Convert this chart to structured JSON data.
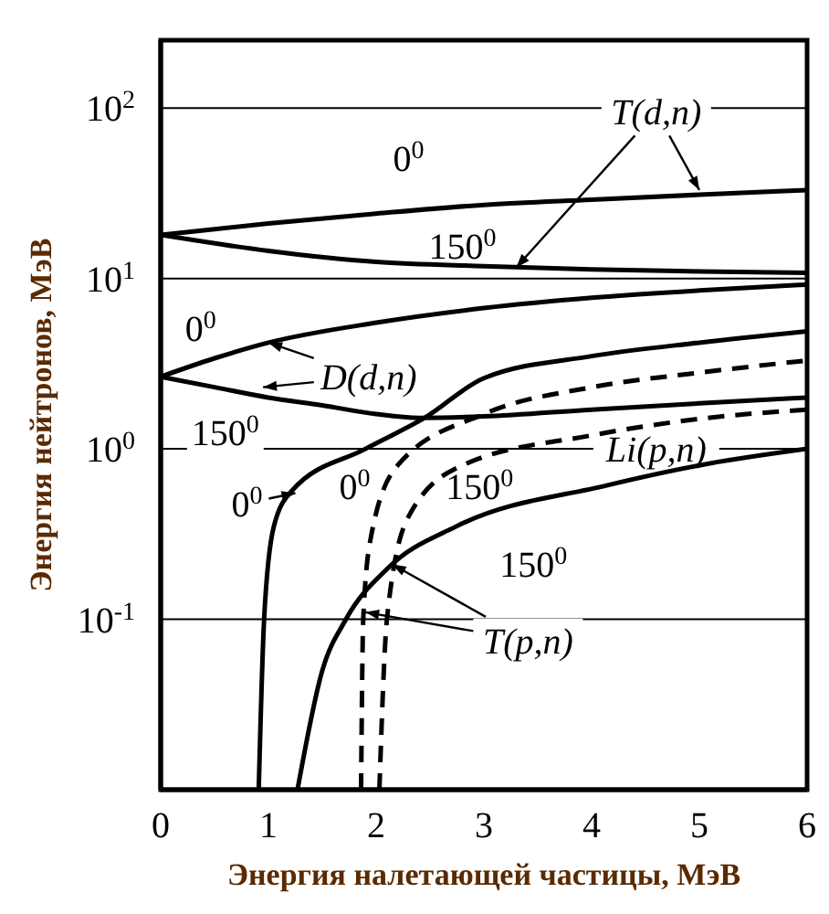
{
  "chart_data": {
    "type": "line",
    "xlabel": "Энергия налетающей частицы, МэВ",
    "ylabel": "Энергия нейтронов, МэВ",
    "log": "y",
    "grid": "y",
    "legend": false,
    "marker": "none",
    "xlim": [
      0,
      6
    ],
    "xticks": [
      0,
      1,
      2,
      3,
      4,
      5,
      6
    ],
    "ylim": [
      0.01,
      250
    ],
    "yticks": [
      {
        "value": 0.1,
        "label": "10$^{-1}$"
      },
      {
        "value": 1,
        "label": "10$^{0}$"
      },
      {
        "value": 10,
        "label": "10$^{1}$"
      },
      {
        "value": 100,
        "label": "10$^{2}$"
      }
    ],
    "series": [
      {
        "color": "#000000",
        "line_style": "solid",
        "x": [
          0,
          1,
          2,
          3,
          4,
          5,
          6
        ],
        "values": [
          18,
          21,
          24,
          27,
          29,
          31,
          33
        ]
      },
      {
        "color": "#000000",
        "line_style": "solid",
        "x": [
          0,
          1,
          2,
          3,
          4,
          5,
          6
        ],
        "values": [
          18,
          14.5,
          12.5,
          11.8,
          11.3,
          11,
          10.8
        ]
      },
      {
        "color": "#000000",
        "line_style": "solid",
        "x": [
          0,
          0.5,
          1,
          2,
          3,
          4,
          5,
          6
        ],
        "values": [
          2.65,
          3.4,
          4.2,
          5.5,
          6.7,
          7.7,
          8.5,
          9.2
        ]
      },
      {
        "color": "#000000",
        "line_style": "solid",
        "x": [
          0,
          0.5,
          1,
          1.5,
          2,
          2.4,
          3,
          4,
          5,
          6
        ],
        "values": [
          2.65,
          2.3,
          2,
          1.8,
          1.6,
          1.52,
          1.55,
          1.7,
          1.85,
          2
        ]
      },
      {
        "color": "#000000",
        "line_style": "solid",
        "x": [
          0.91,
          0.96,
          1.05,
          1.22,
          1.9,
          2.45,
          3,
          4,
          5,
          6
        ],
        "values": [
          0.01,
          0.1,
          0.35,
          0.57,
          1,
          1.52,
          2.6,
          3.5,
          4.2,
          4.9
        ]
      },
      {
        "color": "#000000",
        "line_style": "solid",
        "x": [
          1.27,
          1.5,
          1.72,
          2.11,
          2.74,
          4.14,
          5,
          6
        ],
        "values": [
          0.01,
          0.05,
          0.1,
          0.2,
          0.35,
          0.61,
          0.8,
          1
        ]
      },
      {
        "color": "#000000",
        "line_style": "dashed",
        "x": [
          1.86,
          1.88,
          1.95,
          2.2,
          3,
          4,
          5,
          6
        ],
        "values": [
          0.01,
          0.1,
          0.3,
          0.8,
          1.6,
          2.3,
          2.8,
          3.3
        ]
      },
      {
        "color": "#000000",
        "line_style": "dashed",
        "x": [
          2.03,
          2.1,
          2.3,
          2.8,
          4,
          5,
          6
        ],
        "values": [
          0.01,
          0.1,
          0.4,
          0.8,
          1.2,
          1.5,
          1.7
        ]
      }
    ],
    "annotations": [
      {
        "text": "T(d,n)",
        "x": 5.0,
        "y": 33
      },
      "0$^{0}$",
      "150$^{0}$",
      "0$^{0}$",
      {
        "text": "D(d,n)",
        "x": 1.0,
        "y": 4.2
      },
      "Li(p,n)",
      "150$^{0}$",
      {
        "text": "0$^{0}$",
        "x": 1.25,
        "y": 0.55
      },
      "0$^{0}$",
      "150$^{0}$",
      "150$^{0}$",
      {
        "text": "T(p,n)",
        "x": 2.15,
        "y": 0.21
      }
    ]
  }
}
